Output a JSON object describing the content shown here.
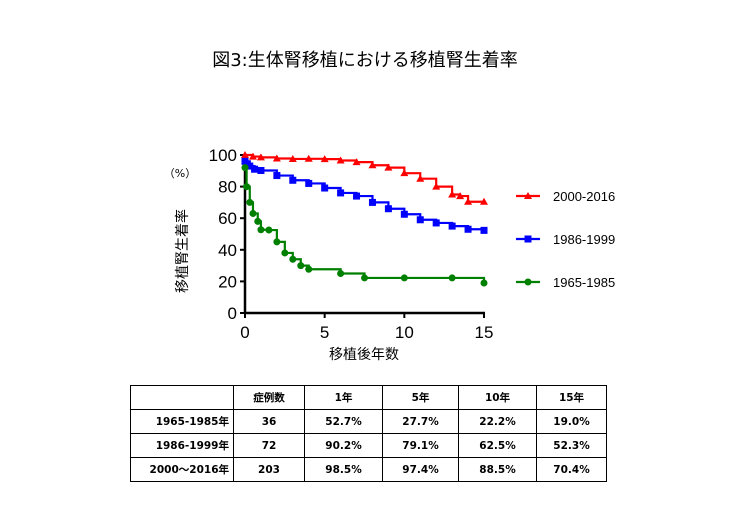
{
  "title": "図3:生体腎移植における移植腎生着率",
  "chart_data": {
    "type": "line",
    "unit_label": "（%）",
    "ylabel": "移植腎生着率",
    "xlabel": "移植後年数",
    "xlim": [
      0,
      15
    ],
    "ylim": [
      0,
      100
    ],
    "xticks": [
      0,
      5,
      10,
      15
    ],
    "yticks": [
      0,
      20,
      40,
      60,
      80,
      100
    ],
    "grid": false,
    "legend_position": "right",
    "series": [
      {
        "name": "2000-2016",
        "color": "#ff0000",
        "marker": "triangle",
        "points": [
          [
            0,
            100
          ],
          [
            0.5,
            99
          ],
          [
            1,
            98.5
          ],
          [
            2,
            97.8
          ],
          [
            3,
            97.5
          ],
          [
            4,
            97.6
          ],
          [
            5,
            97.4
          ],
          [
            6,
            96.5
          ],
          [
            7,
            95.5
          ],
          [
            8,
            93.5
          ],
          [
            9,
            92
          ],
          [
            10,
            88.5
          ],
          [
            11,
            85
          ],
          [
            12,
            80
          ],
          [
            13,
            75
          ],
          [
            13.5,
            74
          ],
          [
            14,
            70.4
          ],
          [
            15,
            70.4
          ]
        ]
      },
      {
        "name": "1986-1999",
        "color": "#0000ff",
        "marker": "square",
        "points": [
          [
            0,
            96
          ],
          [
            0.3,
            93
          ],
          [
            0.6,
            91
          ],
          [
            1,
            90.2
          ],
          [
            2,
            87
          ],
          [
            3,
            84
          ],
          [
            4,
            82
          ],
          [
            5,
            79.1
          ],
          [
            6,
            76
          ],
          [
            7,
            74
          ],
          [
            8,
            70
          ],
          [
            9,
            66
          ],
          [
            10,
            62.5
          ],
          [
            11,
            59
          ],
          [
            12,
            57
          ],
          [
            13,
            55
          ],
          [
            14,
            53
          ],
          [
            15,
            52.3
          ]
        ]
      },
      {
        "name": "1965-1985",
        "color": "#008000",
        "marker": "circle",
        "points": [
          [
            0,
            92
          ],
          [
            0.1,
            80
          ],
          [
            0.3,
            70
          ],
          [
            0.5,
            63
          ],
          [
            0.8,
            58
          ],
          [
            1,
            52.7
          ],
          [
            1.5,
            52.5
          ],
          [
            2,
            45
          ],
          [
            2.5,
            38
          ],
          [
            3,
            34
          ],
          [
            3.5,
            30
          ],
          [
            4,
            27.7
          ],
          [
            6,
            25
          ],
          [
            7.5,
            22.2
          ],
          [
            10,
            22.2
          ],
          [
            13,
            22.2
          ],
          [
            15,
            19
          ]
        ]
      }
    ]
  },
  "table": {
    "headers": [
      "",
      "症例数",
      "1年",
      "5年",
      "10年",
      "15年"
    ],
    "rows": [
      [
        "1965-1985年",
        "36",
        "52.7%",
        "27.7%",
        "22.2%",
        "19.0%"
      ],
      [
        "1986-1999年",
        "72",
        "90.2%",
        "79.1%",
        "62.5%",
        "52.3%"
      ],
      [
        "2000～2016年",
        "203",
        "98.5%",
        "97.4%",
        "88.5%",
        "70.4%"
      ]
    ]
  }
}
